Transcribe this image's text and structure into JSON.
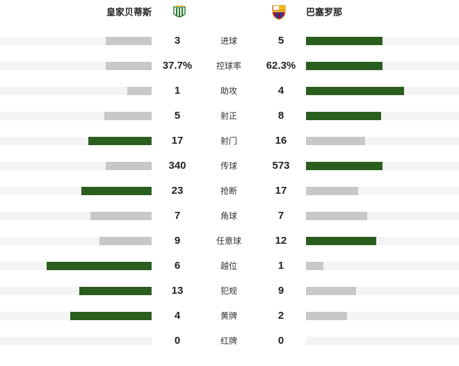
{
  "teams": {
    "home": "皇家贝蒂斯",
    "away": "巴塞罗那"
  },
  "stats": [
    {
      "label": "进球",
      "home": 3,
      "away": 5
    },
    {
      "label": "控球率",
      "home": 37.7,
      "away": 62.3,
      "home_label": "37.7%",
      "away_label": "62.3%"
    },
    {
      "label": "助攻",
      "home": 1,
      "away": 4
    },
    {
      "label": "射正",
      "home": 5,
      "away": 8
    },
    {
      "label": "射门",
      "home": 17,
      "away": 16
    },
    {
      "label": "传球",
      "home": 340,
      "away": 573
    },
    {
      "label": "抢断",
      "home": 23,
      "away": 17
    },
    {
      "label": "角球",
      "home": 7,
      "away": 7
    },
    {
      "label": "任意球",
      "home": 9,
      "away": 12
    },
    {
      "label": "越位",
      "home": 6,
      "away": 1
    },
    {
      "label": "犯规",
      "home": 13,
      "away": 9
    },
    {
      "label": "黄牌",
      "home": 4,
      "away": 2
    },
    {
      "label": "红牌",
      "home": 0,
      "away": 0
    }
  ]
}
